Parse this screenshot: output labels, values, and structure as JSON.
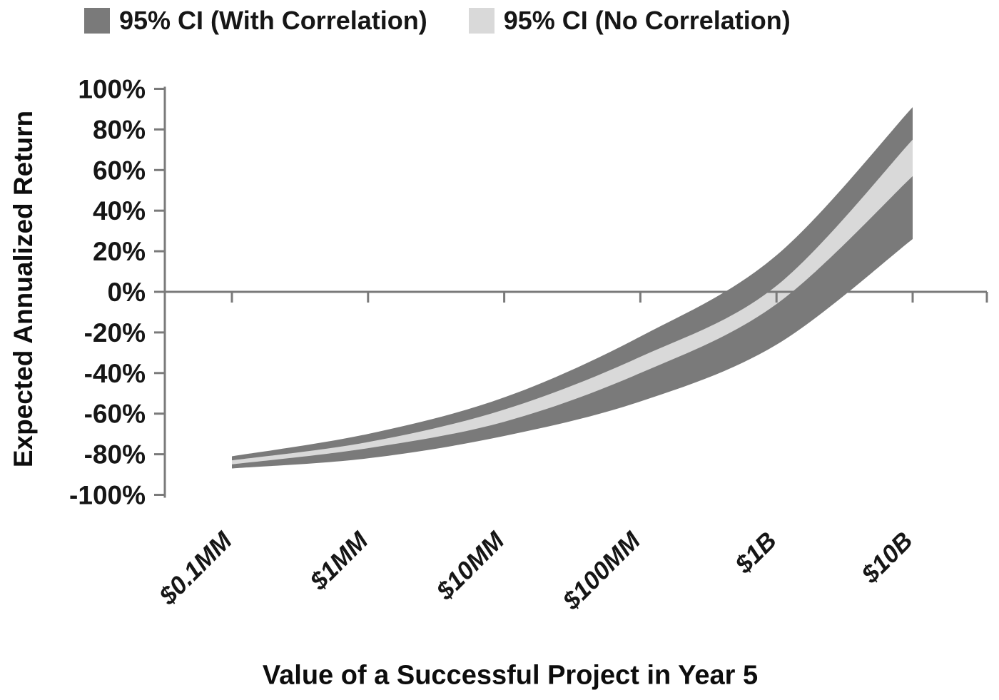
{
  "chart_data": {
    "type": "area",
    "title": "",
    "xlabel": "Value of a Successful Project in Year 5",
    "ylabel": "Expected Annualized Return",
    "categories": [
      "$0.1MM",
      "$1MM",
      "$10MM",
      "$100MM",
      "$1B",
      "$10B"
    ],
    "y_ticks": [
      "100%",
      "80%",
      "60%",
      "40%",
      "20%",
      "0%",
      "-20%",
      "-40%",
      "-60%",
      "-80%",
      "-100%"
    ],
    "ylim": [
      -100,
      100
    ],
    "y_step": 20,
    "grid": "zero-line-only",
    "legend_position": "top",
    "series": [
      {
        "name": "95% CI (With Correlation)",
        "color": "#7a7a7a",
        "band_upper": [
          -81,
          -70,
          -52,
          -22,
          18,
          91
        ],
        "band_lower": [
          -87,
          -82,
          -71,
          -54,
          -26,
          26
        ]
      },
      {
        "name": "95% CI (No Correlation)",
        "color": "#d9d9d9",
        "band_upper": [
          -83,
          -74,
          -58,
          -32,
          3,
          75
        ],
        "band_lower": [
          -85,
          -77,
          -64,
          -40,
          -6,
          57
        ]
      }
    ],
    "axis_color": "#7a7a7a",
    "text_color": "#161616"
  }
}
